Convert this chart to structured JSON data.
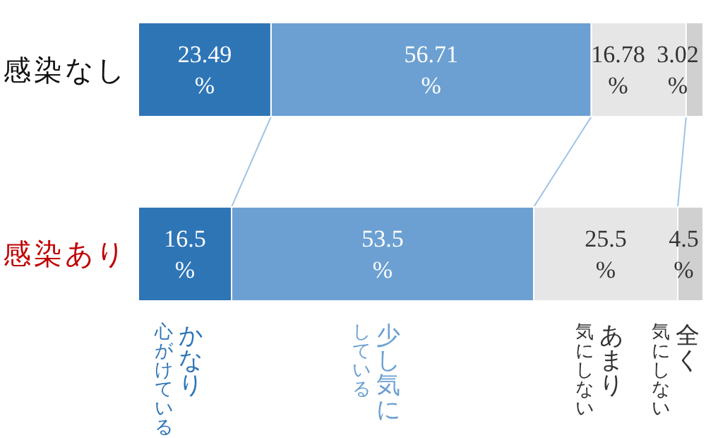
{
  "chart_data": {
    "type": "bar",
    "orientation": "horizontal",
    "stacked": true,
    "categories": [
      "感染なし",
      "感染あり"
    ],
    "xlim": [
      0,
      100
    ],
    "tick_labels": false,
    "legend": "bottom",
    "series": [
      {
        "name": "かなり心がけている",
        "color": "#2e75b6",
        "values": [
          23.49,
          16.5
        ],
        "value_labels": [
          "23.49\n%",
          "16.5\n%"
        ]
      },
      {
        "name": "少し気にしている",
        "color": "#6ca0d2",
        "values": [
          56.71,
          53.5
        ],
        "value_labels": [
          "56.71\n%",
          "53.5\n%"
        ]
      },
      {
        "name": "あまり気にしない",
        "color": "#e6e6e6",
        "values": [
          16.78,
          25.5
        ],
        "value_labels": [
          "16.78\n%",
          "25.5\n%"
        ]
      },
      {
        "name": "全く気にしない",
        "color": "#d0d0d0",
        "values": [
          3.02,
          4.5
        ],
        "value_labels": [
          "3.02\n%",
          "4.5\n%"
        ]
      }
    ]
  }
}
